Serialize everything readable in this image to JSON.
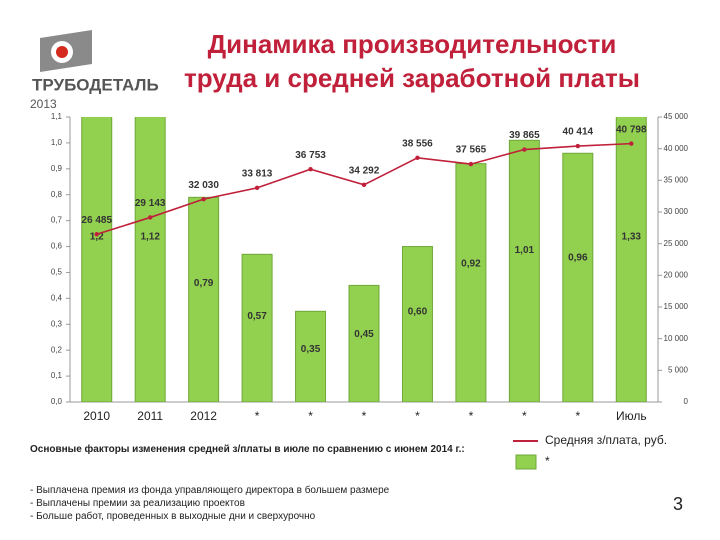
{
  "header": {
    "title": "Динамика производительности труда и средней заработной платы",
    "logo": "ТРУБОДЕТАЛЬ",
    "year": "2013"
  },
  "chart_data": {
    "type": "bar-line",
    "categories": [
      "2010",
      "2011",
      "2012",
      "*",
      "*",
      "*",
      "*",
      "*",
      "*",
      "*",
      "Июль"
    ],
    "series": [
      {
        "name": "*",
        "type": "bar",
        "color": "#92d050",
        "values": [
          1.2,
          1.12,
          0.79,
          0.57,
          0.35,
          0.45,
          0.6,
          0.92,
          1.01,
          0.96,
          1.33
        ],
        "value_labels": [
          "1,2",
          "1,12",
          "0,79",
          "0,57",
          "0,35",
          "0,45",
          "0,60",
          "0,92",
          "1,01",
          "0,96",
          "1,33"
        ]
      },
      {
        "name": "Средняя з/плата, руб.",
        "type": "line",
        "axis": "y2",
        "color": "#c0203a",
        "values": [
          26485,
          29143,
          32030,
          33813,
          36753,
          34292,
          38556,
          37565,
          39865,
          40414,
          40798
        ],
        "value_labels": [
          "26 485",
          "29 143",
          "32 030",
          "33 813",
          "36 753",
          "34 292",
          "38 556",
          "37 565",
          "39 865",
          "40 414",
          "40 798"
        ]
      }
    ],
    "ylim": [
      0,
      1.1
    ],
    "yticks": [
      {
        "value": 0,
        "label": "0,0"
      },
      {
        "value": 0.1,
        "label": "0,1"
      },
      {
        "value": 0.2,
        "label": "0,2"
      },
      {
        "value": 0.3,
        "label": "0,3"
      },
      {
        "value": 0.4,
        "label": "0,4"
      },
      {
        "value": 0.5,
        "label": "0,5"
      },
      {
        "value": 0.6,
        "label": "0,6"
      },
      {
        "value": 0.7,
        "label": "0,7"
      },
      {
        "value": 0.8,
        "label": "0,8"
      },
      {
        "value": 0.9,
        "label": "0,9"
      },
      {
        "value": 1.0,
        "label": "1,0"
      },
      {
        "value": 1.1,
        "label": "1,1"
      }
    ],
    "y2lim": [
      0,
      45000
    ],
    "y2ticks": [
      0,
      {
        "value": 5000,
        "label": "5 000"
      },
      {
        "value": 10000,
        "label": "10 000"
      },
      {
        "value": 15000,
        "label": "15 000"
      },
      {
        "value": 20000,
        "label": "20 000"
      },
      {
        "value": 25000,
        "label": "25 000"
      },
      {
        "value": 30000,
        "label": "30 000"
      },
      {
        "value": 35000,
        "label": "35 000"
      },
      {
        "value": 40000,
        "label": "40 000"
      },
      {
        "value": 45000,
        "label": "45 000"
      }
    ],
    "grid": false
  },
  "notes": {
    "heading": "Основные факторы изменения средней з/платы в июле по сравнению с июнем 2014 г.:",
    "items": [
      "- Выплачена премия из фонда управляющего директора в большем размере",
      "- Выплачены премии за реализацию проектов",
      "- Больше работ, проведенных в выходные дни и сверхурочно"
    ]
  },
  "page_number": "3"
}
